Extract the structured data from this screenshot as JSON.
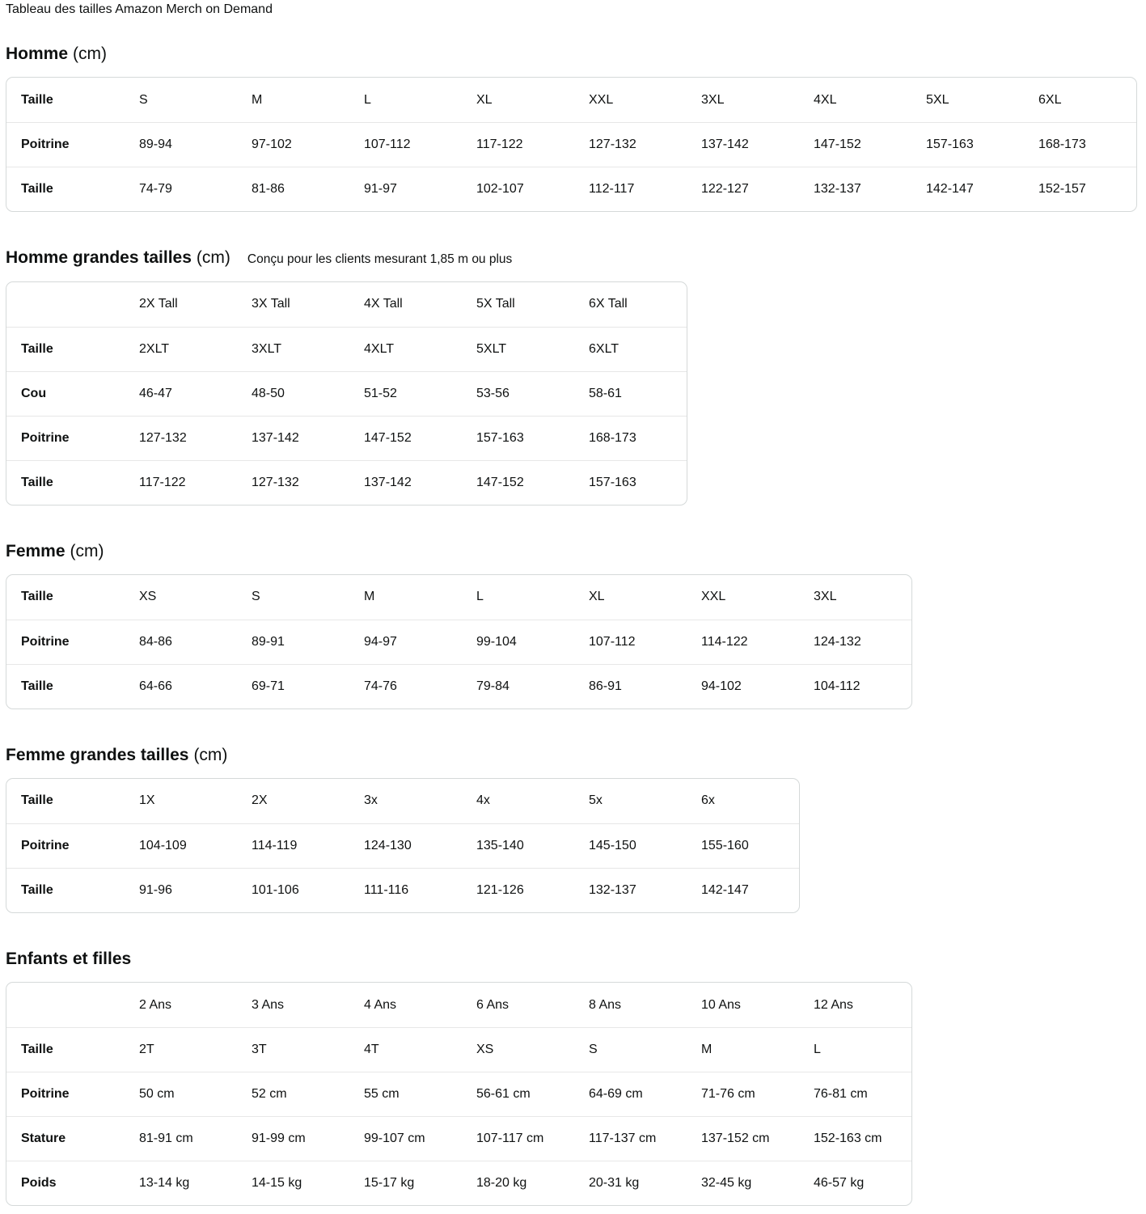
{
  "page_title": "Tableau des tailles Amazon Merch on Demand",
  "colors": {
    "text": "#0f1111",
    "table_border": "#d5d9d9",
    "row_divider": "#e7e7e7",
    "background": "#ffffff"
  },
  "sections": [
    {
      "id": "homme",
      "heading": "Homme",
      "unit": "(cm)",
      "subtitle": "",
      "rows": [
        [
          "Taille",
          "S",
          "M",
          "L",
          "XL",
          "XXL",
          "3XL",
          "4XL",
          "5XL",
          "6XL"
        ],
        [
          "Poitrine",
          "89-94",
          "97-102",
          "107-112",
          "117-122",
          "127-132",
          "137-142",
          "147-152",
          "157-163",
          "168-173"
        ],
        [
          "Taille",
          "74-79",
          "81-86",
          "91-97",
          "102-107",
          "112-117",
          "122-127",
          "132-137",
          "142-147",
          "152-157"
        ]
      ]
    },
    {
      "id": "homme-grandes-tailles",
      "heading": "Homme grandes tailles",
      "unit": "(cm)",
      "subtitle": "Conçu pour les clients mesurant 1,85 m ou plus",
      "rows": [
        [
          "",
          "2X Tall",
          "3X Tall",
          "4X Tall",
          "5X Tall",
          "6X Tall"
        ],
        [
          "Taille",
          "2XLT",
          "3XLT",
          "4XLT",
          "5XLT",
          "6XLT"
        ],
        [
          "Cou",
          "46-47",
          "48-50",
          "51-52",
          "53-56",
          "58-61"
        ],
        [
          "Poitrine",
          "127-132",
          "137-142",
          "147-152",
          "157-163",
          "168-173"
        ],
        [
          "Taille",
          "117-122",
          "127-132",
          "137-142",
          "147-152",
          "157-163"
        ]
      ]
    },
    {
      "id": "femme",
      "heading": "Femme",
      "unit": "(cm)",
      "subtitle": "",
      "rows": [
        [
          "Taille",
          "XS",
          "S",
          "M",
          "L",
          "XL",
          "XXL",
          "3XL"
        ],
        [
          "Poitrine",
          "84-86",
          "89-91",
          "94-97",
          "99-104",
          "107-112",
          "114-122",
          "124-132"
        ],
        [
          "Taille",
          "64-66",
          "69-71",
          "74-76",
          "79-84",
          "86-91",
          "94-102",
          "104-112"
        ]
      ]
    },
    {
      "id": "femme-grandes-tailles",
      "heading": "Femme grandes tailles",
      "unit": "(cm)",
      "subtitle": "",
      "rows": [
        [
          "Taille",
          "1X",
          "2X",
          "3x",
          "4x",
          "5x",
          "6x"
        ],
        [
          "Poitrine",
          "104-109",
          "114-119",
          "124-130",
          "135-140",
          "145-150",
          "155-160"
        ],
        [
          "Taille",
          "91-96",
          "101-106",
          "111-116",
          "121-126",
          "132-137",
          "142-147"
        ]
      ]
    },
    {
      "id": "enfants-et-filles",
      "heading": "Enfants et filles",
      "unit": "",
      "subtitle": "",
      "rows": [
        [
          "",
          "2 Ans",
          "3 Ans",
          "4 Ans",
          "6 Ans",
          "8 Ans",
          "10 Ans",
          "12 Ans"
        ],
        [
          "Taille",
          "2T",
          "3T",
          "4T",
          "XS",
          "S",
          "M",
          "L"
        ],
        [
          "Poitrine",
          "50 cm",
          "52 cm",
          "55 cm",
          "56-61 cm",
          "64-69 cm",
          "71-76 cm",
          "76-81 cm"
        ],
        [
          "Stature",
          "81-91 cm",
          "91-99 cm",
          "99-107 cm",
          "107-117 cm",
          "117-137 cm",
          "137-152 cm",
          "152-163 cm"
        ],
        [
          "Poids",
          "13-14 kg",
          "14-15 kg",
          "15-17 kg",
          "18-20 kg",
          "20-31 kg",
          "32-45 kg",
          "46-57 kg"
        ]
      ]
    }
  ]
}
